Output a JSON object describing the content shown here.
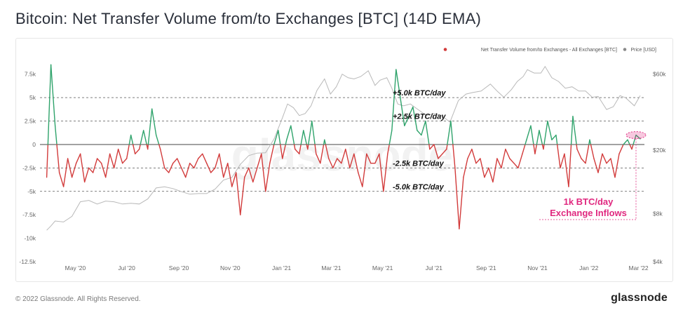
{
  "title": "Bitcoin: Net Transfer Volume from/to Exchanges [BTC] (14D EMA)",
  "footer": {
    "copyright": "© 2022 Glassnode. All Rights Reserved.",
    "brand": "glassnode"
  },
  "colors": {
    "positive": "#2fa36b",
    "negative": "#d23b3b",
    "price": "#b9b9b9",
    "annotation": "#e0287f",
    "zero_line": "#444444"
  },
  "chart_data": {
    "type": "line",
    "watermark": "glassnode",
    "legend": {
      "position": "top-right",
      "entries": [
        {
          "name": "Net Transfer Volume from/to Exchanges - All Exchanges [BTC]",
          "color": "#d23b3b"
        },
        {
          "name": "Price [USD]",
          "color": "#8a8a8a"
        }
      ]
    },
    "ylim": [
      -12500,
      8750
    ],
    "yticks": [
      7500,
      5000,
      2500,
      0,
      -2500,
      -5000,
      -7500,
      -10000,
      -12500
    ],
    "ytick_labels": [
      "7.5k",
      "5k",
      "2.5k",
      "0",
      "-2.5k",
      "-5k",
      "-7.5k",
      "-10k",
      "-12.5k"
    ],
    "y2_scale": "log",
    "y2_ticks": [
      60000,
      20000,
      8000,
      4000
    ],
    "y2_tick_labels": [
      "$60k",
      "$20k",
      "$8k",
      "$4k"
    ],
    "xticks": [
      "May '20",
      "Jul '20",
      "Sep '20",
      "Nov '20",
      "Jan '21",
      "Mar '21",
      "May '21",
      "Jul '21",
      "Sep '21",
      "Nov '21",
      "Jan '22",
      "Mar '22"
    ],
    "reference_lines": [
      {
        "value": 5000,
        "label": "+5.0k BTC/day"
      },
      {
        "value": 2500,
        "label": "+2.5k BTC/day"
      },
      {
        "value": -2500,
        "label": "-2.5k BTC/day"
      },
      {
        "value": -5000,
        "label": "-5.0k BTC/day"
      }
    ],
    "annotation": {
      "lines": [
        "1k BTC/day",
        "Exchange Inflows"
      ],
      "value": 1000,
      "date": "2022-02-26"
    },
    "series": [
      {
        "name": "Net Transfer Volume from/to Exchanges - All Exchanges [BTC]",
        "x": [
          "2020-03-28",
          "2020-04-02",
          "2020-04-07",
          "2020-04-12",
          "2020-04-17",
          "2020-04-22",
          "2020-04-27",
          "2020-05-02",
          "2020-05-07",
          "2020-05-12",
          "2020-05-17",
          "2020-05-22",
          "2020-05-27",
          "2020-06-01",
          "2020-06-06",
          "2020-06-11",
          "2020-06-16",
          "2020-06-21",
          "2020-06-26",
          "2020-07-01",
          "2020-07-06",
          "2020-07-11",
          "2020-07-16",
          "2020-07-21",
          "2020-07-26",
          "2020-07-31",
          "2020-08-05",
          "2020-08-10",
          "2020-08-15",
          "2020-08-20",
          "2020-08-25",
          "2020-08-30",
          "2020-09-04",
          "2020-09-09",
          "2020-09-14",
          "2020-09-19",
          "2020-09-24",
          "2020-09-29",
          "2020-10-04",
          "2020-10-09",
          "2020-10-14",
          "2020-10-19",
          "2020-10-24",
          "2020-10-29",
          "2020-11-03",
          "2020-11-08",
          "2020-11-13",
          "2020-11-18",
          "2020-11-23",
          "2020-11-28",
          "2020-12-03",
          "2020-12-08",
          "2020-12-13",
          "2020-12-18",
          "2020-12-23",
          "2020-12-28",
          "2021-01-02",
          "2021-01-07",
          "2021-01-12",
          "2021-01-17",
          "2021-01-22",
          "2021-01-27",
          "2021-02-01",
          "2021-02-06",
          "2021-02-11",
          "2021-02-16",
          "2021-02-21",
          "2021-02-26",
          "2021-03-03",
          "2021-03-08",
          "2021-03-13",
          "2021-03-18",
          "2021-03-23",
          "2021-03-28",
          "2021-04-02",
          "2021-04-07",
          "2021-04-12",
          "2021-04-17",
          "2021-04-22",
          "2021-04-27",
          "2021-05-02",
          "2021-05-07",
          "2021-05-12",
          "2021-05-17",
          "2021-05-22",
          "2021-05-27",
          "2021-06-01",
          "2021-06-06",
          "2021-06-11",
          "2021-06-16",
          "2021-06-21",
          "2021-06-26",
          "2021-07-01",
          "2021-07-06",
          "2021-07-11",
          "2021-07-16",
          "2021-07-21",
          "2021-07-26",
          "2021-07-31",
          "2021-08-05",
          "2021-08-10",
          "2021-08-15",
          "2021-08-20",
          "2021-08-25",
          "2021-08-30",
          "2021-09-04",
          "2021-09-09",
          "2021-09-14",
          "2021-09-19",
          "2021-09-24",
          "2021-09-29",
          "2021-10-04",
          "2021-10-09",
          "2021-10-14",
          "2021-10-19",
          "2021-10-24",
          "2021-10-29",
          "2021-11-03",
          "2021-11-08",
          "2021-11-13",
          "2021-11-18",
          "2021-11-23",
          "2021-11-28",
          "2021-12-03",
          "2021-12-08",
          "2021-12-13",
          "2021-12-18",
          "2021-12-23",
          "2021-12-28",
          "2022-01-02",
          "2022-01-07",
          "2022-01-12",
          "2022-01-17",
          "2022-01-22",
          "2022-01-27",
          "2022-02-01",
          "2022-02-06",
          "2022-02-11",
          "2022-02-16",
          "2022-02-21",
          "2022-02-26",
          "2022-03-03"
        ],
        "values": [
          -3500,
          8500,
          2000,
          -3000,
          -4500,
          -1500,
          -3500,
          -2000,
          -1000,
          -4000,
          -2500,
          -3000,
          -1500,
          -2000,
          -3500,
          -1000,
          -2500,
          -500,
          -2000,
          -1500,
          1000,
          -1000,
          -500,
          1500,
          -500,
          3800,
          1000,
          -500,
          -2500,
          -3000,
          -2000,
          -1500,
          -2500,
          -3500,
          -2000,
          -2500,
          -1500,
          -1000,
          -2000,
          -3000,
          -2500,
          -1000,
          -3500,
          -2000,
          -4500,
          -3000,
          -7500,
          -3500,
          -2500,
          -4000,
          -2500,
          -1000,
          -5000,
          -2000,
          0,
          1500,
          -1500,
          500,
          2000,
          -500,
          -1000,
          1500,
          -500,
          2500,
          -1000,
          -2000,
          500,
          -1500,
          -2500,
          -1500,
          -2000,
          -500,
          -2500,
          -1000,
          -3000,
          -4500,
          -1000,
          -2000,
          -2000,
          -1000,
          -5000,
          -1000,
          1500,
          8000,
          5000,
          2000,
          3000,
          4000,
          1500,
          1000,
          2500,
          -500,
          0,
          -1500,
          -1000,
          -500,
          2500,
          -2500,
          -9000,
          -3500,
          -1500,
          -500,
          -2000,
          -1500,
          -3500,
          -2500,
          -4000,
          -1500,
          -2500,
          -500,
          -1500,
          -2000,
          -2500,
          -1000,
          500,
          2000,
          -1000,
          1500,
          -500,
          2500,
          500,
          1000,
          -2500,
          -1000,
          -4500,
          3000,
          -500,
          -1500,
          -2000,
          500,
          -1500,
          -3000,
          -1000,
          -2000,
          -1500,
          -3500,
          -1000,
          0,
          500,
          -500,
          1000,
          600
        ]
      },
      {
        "name": "Price [USD]",
        "x": [
          "2020-03-28",
          "2020-04-02",
          "2020-04-07",
          "2020-04-17",
          "2020-04-27",
          "2020-05-07",
          "2020-05-17",
          "2020-05-27",
          "2020-06-06",
          "2020-06-16",
          "2020-06-26",
          "2020-07-06",
          "2020-07-16",
          "2020-07-26",
          "2020-08-05",
          "2020-08-15",
          "2020-08-25",
          "2020-09-04",
          "2020-09-14",
          "2020-09-24",
          "2020-10-04",
          "2020-10-14",
          "2020-10-24",
          "2020-11-03",
          "2020-11-13",
          "2020-11-23",
          "2020-12-03",
          "2020-12-13",
          "2020-12-23",
          "2021-01-02",
          "2021-01-08",
          "2021-01-15",
          "2021-01-22",
          "2021-01-29",
          "2021-02-05",
          "2021-02-12",
          "2021-02-21",
          "2021-02-28",
          "2021-03-07",
          "2021-03-14",
          "2021-03-21",
          "2021-03-28",
          "2021-04-05",
          "2021-04-14",
          "2021-04-22",
          "2021-04-28",
          "2021-05-06",
          "2021-05-12",
          "2021-05-19",
          "2021-05-26",
          "2021-06-03",
          "2021-06-12",
          "2021-06-22",
          "2021-07-01",
          "2021-07-10",
          "2021-07-20",
          "2021-07-30",
          "2021-08-08",
          "2021-08-16",
          "2021-08-26",
          "2021-09-06",
          "2021-09-14",
          "2021-09-22",
          "2021-10-01",
          "2021-10-08",
          "2021-10-15",
          "2021-10-20",
          "2021-10-28",
          "2021-11-05",
          "2021-11-10",
          "2021-11-18",
          "2021-11-26",
          "2021-12-04",
          "2021-12-12",
          "2021-12-20",
          "2021-12-28",
          "2022-01-05",
          "2022-01-12",
          "2022-01-22",
          "2022-01-30",
          "2022-02-07",
          "2022-02-14",
          "2022-02-24",
          "2022-03-03"
        ],
        "values": [
          6300,
          6700,
          7200,
          7100,
          7700,
          9500,
          9700,
          9200,
          9600,
          9500,
          9200,
          9300,
          9200,
          9900,
          11600,
          11800,
          11500,
          11000,
          10600,
          10700,
          10700,
          11400,
          13000,
          13500,
          16300,
          18500,
          19200,
          19300,
          23500,
          32000,
          39000,
          37000,
          33000,
          34000,
          38000,
          47500,
          56000,
          45000,
          50000,
          60000,
          57000,
          56000,
          58000,
          63000,
          51000,
          55000,
          57000,
          49000,
          39000,
          38000,
          39000,
          36000,
          33000,
          34000,
          33000,
          30000,
          41000,
          45000,
          46000,
          47000,
          52000,
          47000,
          43000,
          48000,
          54000,
          58000,
          64000,
          61000,
          61000,
          67000,
          57000,
          54000,
          49000,
          50000,
          47000,
          47000,
          43000,
          43500,
          36000,
          37500,
          44000,
          42500,
          38000,
          44000
        ]
      }
    ]
  }
}
